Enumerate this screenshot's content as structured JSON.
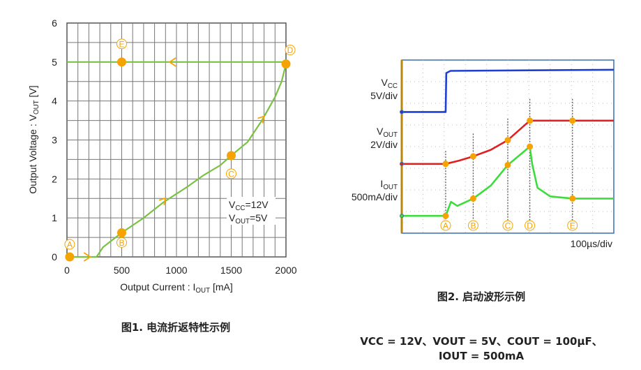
{
  "chart_data": [
    {
      "type": "line",
      "xlabel": "Output Current : I",
      "xlabel_sub": "OUT",
      "xlabel_unit": " [mA]",
      "ylabel": "Output Voltage : V",
      "ylabel_sub": "OUT",
      "ylabel_unit": " [V]",
      "xlim": [
        0,
        2000
      ],
      "ylim": [
        0,
        6
      ],
      "xticks": [
        "0",
        "500",
        "1000",
        "1500",
        "2000"
      ],
      "yticks": [
        "0",
        "1",
        "2",
        "3",
        "4",
        "5",
        "6"
      ],
      "grid": true,
      "line_color": "#7ac143",
      "marker_color": "#f5a300",
      "series": [
        {
          "x": [
            25,
            200,
            270,
            330,
            500,
            700,
            880,
            1100,
            1250,
            1400,
            1500,
            1650,
            1780,
            1900,
            1960,
            2000
          ],
          "y": [
            0,
            0,
            0,
            0.25,
            0.62,
            1.0,
            1.4,
            1.8,
            2.1,
            2.35,
            2.6,
            2.95,
            3.5,
            4.1,
            4.5,
            4.95
          ]
        },
        {
          "x": [
            2000,
            0
          ],
          "y": [
            5,
            5
          ]
        }
      ],
      "points": [
        {
          "label": "A",
          "x": 25,
          "y": 0
        },
        {
          "label": "B",
          "x": 500,
          "y": 0.62
        },
        {
          "label": "C",
          "x": 1500,
          "y": 2.6
        },
        {
          "label": "D",
          "x": 2000,
          "y": 4.95
        },
        {
          "label": "E",
          "x": 500,
          "y": 5
        }
      ],
      "arrows": [
        {
          "x": 200,
          "y": 0,
          "dir": "right"
        },
        {
          "x": 880,
          "y": 1.4,
          "dir": "up-right"
        },
        {
          "x": 1780,
          "y": 3.5,
          "dir": "up-right"
        },
        {
          "x": 950,
          "y": 5,
          "dir": "left"
        }
      ],
      "annotation": [
        "V",
        "CC",
        "=12V",
        "V",
        "OUT",
        "=5V"
      ],
      "caption": "图1. 电流折返特性示例"
    },
    {
      "type": "line",
      "time_scale": "100µs/div",
      "xlim": [
        0,
        1000
      ],
      "ylim_div": [
        0,
        8
      ],
      "grid": true,
      "series": [
        {
          "name": "V",
          "sub": "CC",
          "scale": "5V/div",
          "color": "#1f3fd0",
          "t": [
            0,
            207,
            210,
            230,
            1000
          ],
          "div": [
            5.6,
            5.6,
            7.4,
            7.5,
            7.55
          ]
        },
        {
          "name": "V",
          "sub": "OUT",
          "scale": "2V/div",
          "color": "#e02020",
          "t": [
            0,
            207,
            270,
            337,
            420,
            500,
            604,
            1000
          ],
          "div": [
            3.2,
            3.2,
            3.35,
            3.55,
            3.85,
            4.3,
            5.2,
            5.2
          ]
        },
        {
          "name": "I",
          "sub": "OUT",
          "scale": "500mA/div",
          "color": "#3ddc3d",
          "t": [
            0,
            207,
            232,
            262,
            337,
            420,
            500,
            604,
            615,
            640,
            700,
            805,
            1000
          ],
          "div": [
            0.8,
            0.8,
            1.45,
            1.26,
            1.6,
            2.2,
            3.15,
            4.0,
            3.2,
            2.1,
            1.7,
            1.6,
            1.6
          ]
        }
      ],
      "markers": [
        {
          "label": "A",
          "t": 207
        },
        {
          "label": "B",
          "t": 337
        },
        {
          "label": "C",
          "t": 500
        },
        {
          "label": "D",
          "t": 604
        },
        {
          "label": "E",
          "t": 805
        }
      ],
      "caption": "图2. 启动波形示例"
    }
  ],
  "conditions": {
    "line1": "VCC = 12V、VOUT = 5V、COUT = 100µF、",
    "line2": "IOUT = 500mA"
  }
}
